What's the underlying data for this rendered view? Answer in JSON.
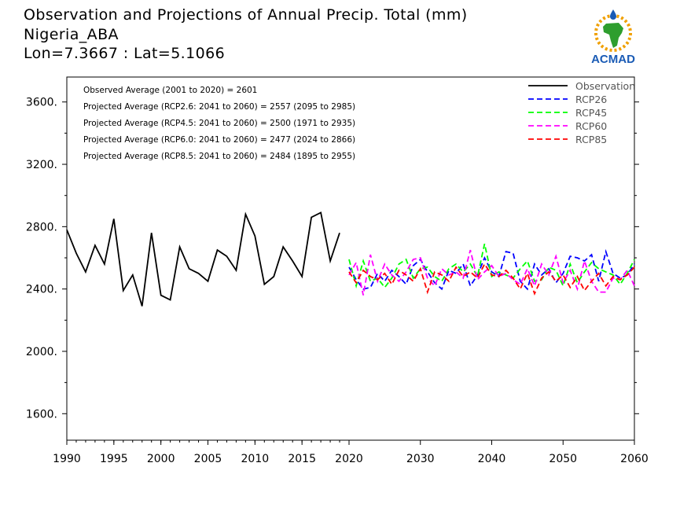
{
  "header": {
    "title": "Observation and Projections of Annual Precip. Total (mm)",
    "location": "Nigeria_ABA",
    "coords": "Lon=7.3667 : Lat=5.1066"
  },
  "logo": {
    "text": "ACMAD",
    "icon": "africa-water-drop-logo",
    "colors": {
      "blue": "#1a5bb5",
      "orange": "#f0a000",
      "green": "#2e9e2e"
    }
  },
  "stats": [
    "Observed Average (2001 to 2020) = 2601",
    "Projected Average (RCP2.6: 2041 to 2060) = 2557 (2095 to 2985)",
    "Projected Average (RCP4.5: 2041 to 2060) = 2500 (1971 to 2935)",
    "Projected Average (RCP6.0: 2041 to 2060) = 2477 (2024 to 2866)",
    "Projected Average (RCP8.5: 2041 to 2060) = 2484 (1895 to 2955)"
  ],
  "chart_data": {
    "type": "line",
    "xlim": [
      1990,
      2060
    ],
    "ylim": [
      1430,
      3760
    ],
    "xticks": [
      "1990",
      "1995",
      "2000",
      "2005",
      "2010",
      "2015",
      "2020",
      "2030",
      "2040",
      "2050",
      "2060"
    ],
    "xtick_values": [
      1990,
      1995,
      2000,
      2005,
      2010,
      2015,
      2020,
      2030,
      2040,
      2050,
      2060
    ],
    "yticks": [
      "1600.",
      "2000.",
      "2400.",
      "2800.",
      "3200.",
      "3600."
    ],
    "ytick_values": [
      1600,
      2000,
      2400,
      2800,
      3200,
      3600
    ],
    "legend_position": "top-right",
    "series": [
      {
        "name": "Observation",
        "color": "#000000",
        "dash": "solid",
        "x": [
          1990,
          1991,
          1992,
          1993,
          1994,
          1995,
          1996,
          1997,
          1998,
          1999,
          2000,
          2001,
          2002,
          2003,
          2004,
          2005,
          2006,
          2007,
          2008,
          2009,
          2010,
          2011,
          2012,
          2013,
          2014,
          2015,
          2016,
          2017,
          2018,
          2019,
          2020
        ],
        "y": [
          2780,
          2630,
          2510,
          2680,
          2560,
          2850,
          2390,
          2490,
          2290,
          2760,
          2360,
          2330,
          2670,
          2530,
          2500,
          2450,
          2650,
          2610,
          2520,
          2880,
          2740,
          2430,
          2480,
          2670,
          2580,
          2480,
          2860,
          2890,
          2580,
          2760,
          null
        ]
      },
      {
        "name": "RCP26",
        "color": "#0000ff",
        "dash": "dashed",
        "x": [
          2020,
          2021,
          2022,
          2023,
          2024,
          2025,
          2026,
          2027,
          2028,
          2029,
          2030,
          2031,
          2032,
          2033,
          2034,
          2035,
          2036,
          2037,
          2038,
          2039,
          2040,
          2041,
          2042,
          2043,
          2044,
          2045,
          2046,
          2047,
          2048,
          2049,
          2050,
          2051,
          2052,
          2053,
          2054,
          2055,
          2056,
          2057,
          2058,
          2059,
          2060
        ],
        "y": [
          2540,
          2460,
          2400,
          2410,
          2500,
          2450,
          2520,
          2480,
          2430,
          2550,
          2590,
          2510,
          2440,
          2400,
          2520,
          2500,
          2560,
          2420,
          2490,
          2600,
          2510,
          2480,
          2640,
          2630,
          2450,
          2400,
          2560,
          2490,
          2530,
          2440,
          2500,
          2610,
          2600,
          2580,
          2620,
          2450,
          2640,
          2500,
          2470,
          2490,
          2560
        ]
      },
      {
        "name": "RCP45",
        "color": "#00ff00",
        "dash": "dashed",
        "x": [
          2020,
          2021,
          2022,
          2023,
          2024,
          2025,
          2026,
          2027,
          2028,
          2029,
          2030,
          2031,
          2032,
          2033,
          2034,
          2035,
          2036,
          2037,
          2038,
          2039,
          2040,
          2041,
          2042,
          2043,
          2044,
          2045,
          2046,
          2047,
          2048,
          2049,
          2050,
          2051,
          2052,
          2053,
          2054,
          2055,
          2056,
          2057,
          2058,
          2059,
          2060
        ],
        "y": [
          2590,
          2420,
          2580,
          2450,
          2470,
          2410,
          2470,
          2560,
          2590,
          2470,
          2530,
          2540,
          2480,
          2450,
          2530,
          2560,
          2510,
          2560,
          2480,
          2690,
          2480,
          2510,
          2490,
          2470,
          2530,
          2580,
          2450,
          2460,
          2540,
          2520,
          2420,
          2560,
          2440,
          2510,
          2570,
          2530,
          2510,
          2490,
          2430,
          2500,
          2590
        ]
      },
      {
        "name": "RCP60",
        "color": "#ff00ff",
        "dash": "dashed",
        "x": [
          2020,
          2021,
          2022,
          2023,
          2024,
          2025,
          2026,
          2027,
          2028,
          2029,
          2030,
          2031,
          2032,
          2033,
          2034,
          2035,
          2036,
          2037,
          2038,
          2039,
          2040,
          2041,
          2042,
          2043,
          2044,
          2045,
          2046,
          2047,
          2048,
          2049,
          2050,
          2051,
          2052,
          2053,
          2054,
          2055,
          2056,
          2057,
          2058,
          2059,
          2060
        ],
        "y": [
          2490,
          2570,
          2360,
          2620,
          2450,
          2560,
          2490,
          2450,
          2510,
          2590,
          2600,
          2470,
          2420,
          2530,
          2490,
          2510,
          2470,
          2650,
          2460,
          2510,
          2550,
          2480,
          2500,
          2460,
          2430,
          2530,
          2420,
          2560,
          2490,
          2610,
          2440,
          2520,
          2400,
          2580,
          2450,
          2380,
          2380,
          2470,
          2460,
          2520,
          2420
        ]
      },
      {
        "name": "RCP85",
        "color": "#ff0000",
        "dash": "dashed",
        "x": [
          2020,
          2021,
          2022,
          2023,
          2024,
          2025,
          2026,
          2027,
          2028,
          2029,
          2030,
          2031,
          2032,
          2033,
          2034,
          2035,
          2036,
          2037,
          2038,
          2039,
          2040,
          2041,
          2042,
          2043,
          2044,
          2045,
          2046,
          2047,
          2048,
          2049,
          2050,
          2051,
          2052,
          2053,
          2054,
          2055,
          2056,
          2057,
          2058,
          2059,
          2060
        ],
        "y": [
          2510,
          2440,
          2520,
          2480,
          2460,
          2500,
          2430,
          2520,
          2490,
          2450,
          2530,
          2380,
          2510,
          2490,
          2450,
          2540,
          2480,
          2510,
          2470,
          2560,
          2490,
          2480,
          2520,
          2470,
          2400,
          2500,
          2370,
          2470,
          2510,
          2450,
          2490,
          2410,
          2480,
          2390,
          2450,
          2500,
          2420,
          2480,
          2460,
          2490,
          2540
        ]
      }
    ]
  }
}
